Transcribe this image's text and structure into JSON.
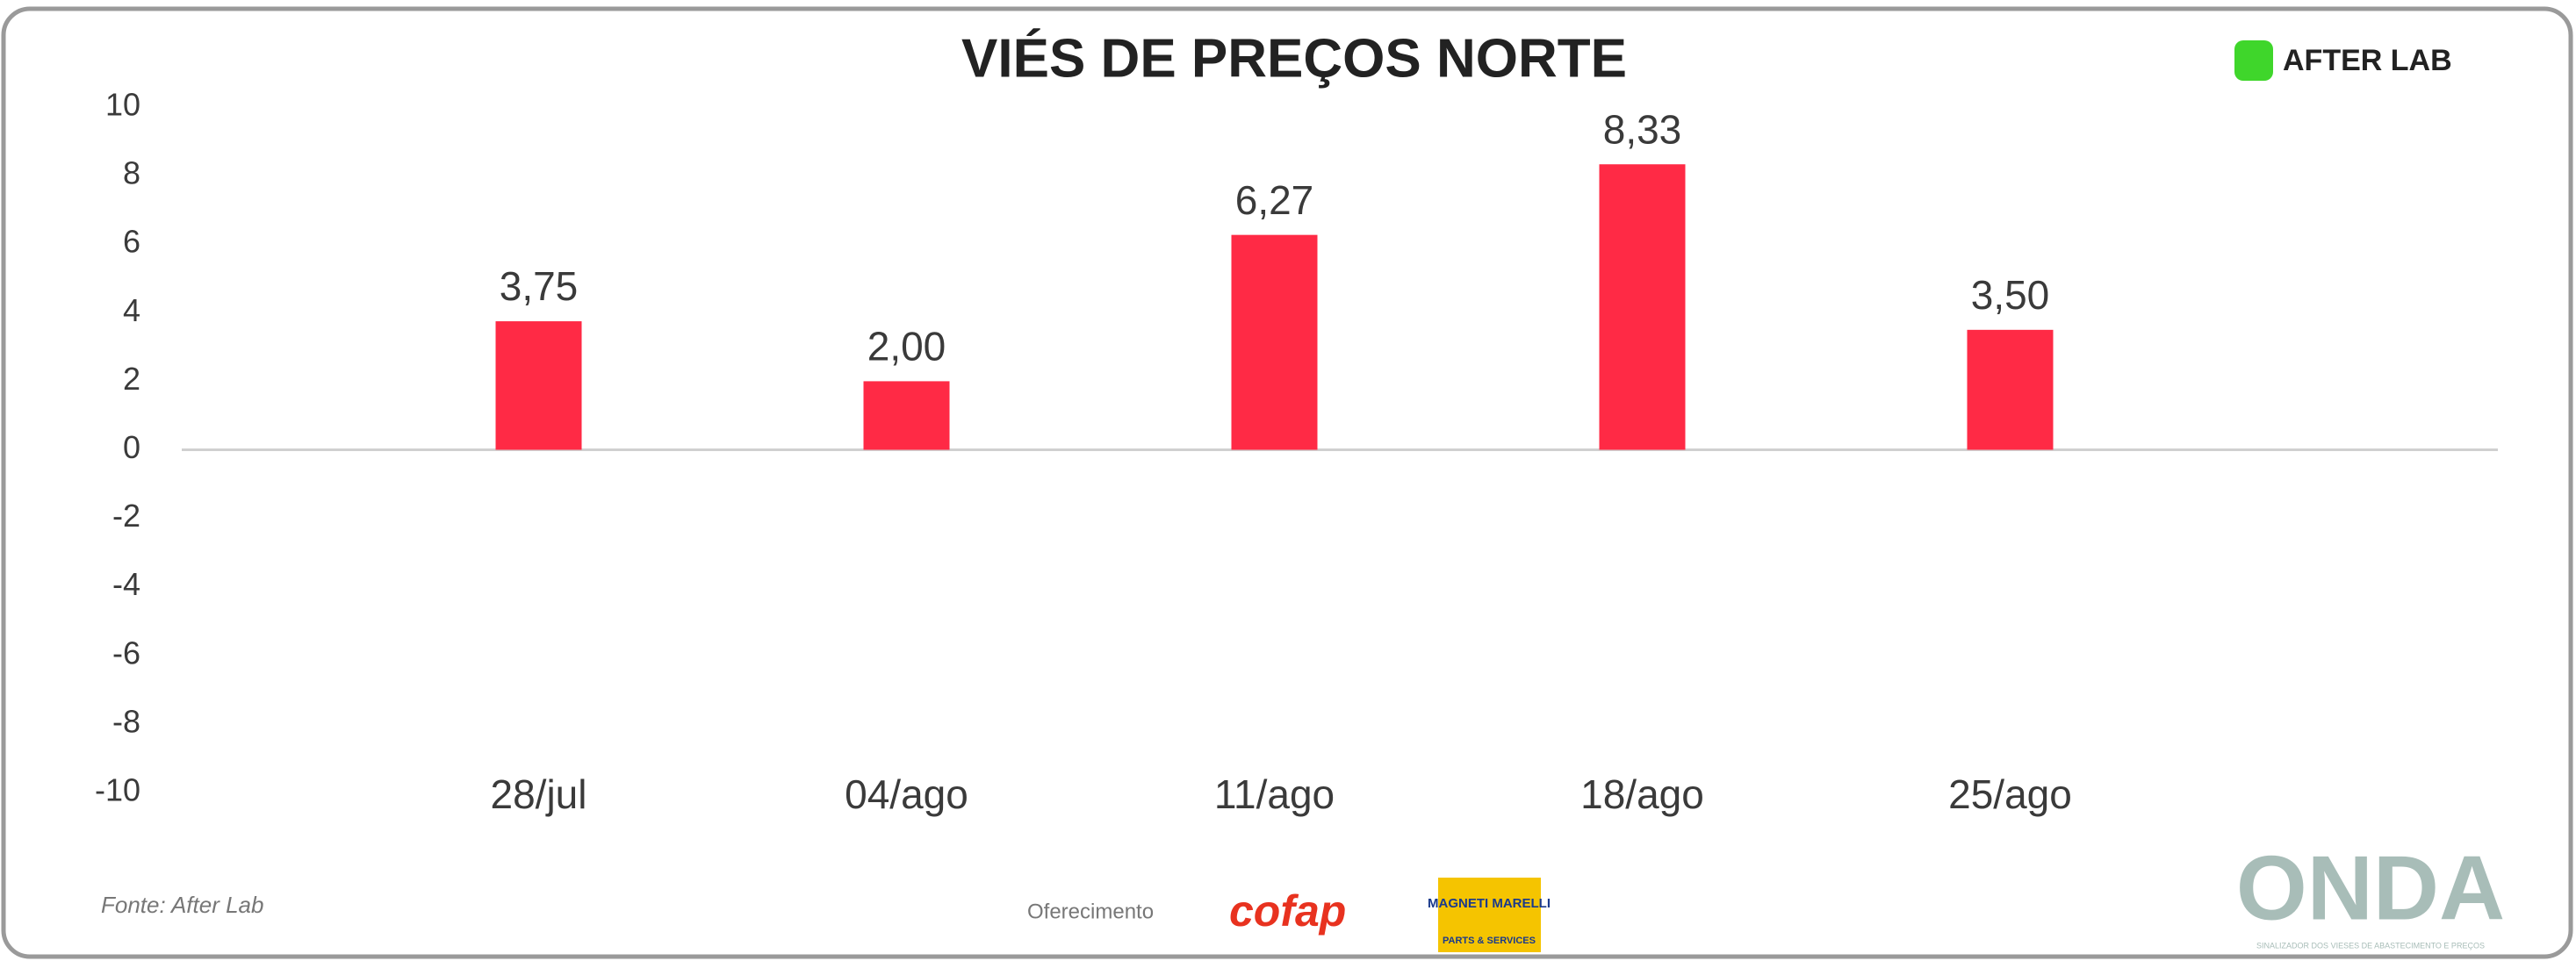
{
  "chart_data": {
    "type": "bar",
    "title": "VIÉS DE PREÇOS NORTE",
    "categories": [
      "28/jul",
      "04/ago",
      "11/ago",
      "18/ago",
      "25/ago"
    ],
    "values": [
      3.75,
      2.0,
      6.27,
      8.33,
      3.5
    ],
    "value_labels": [
      "3,75",
      "2,00",
      "6,27",
      "8,33",
      "3,50"
    ],
    "color": "#ff2a45",
    "ylim": [
      -10,
      10
    ],
    "yticks": [
      -10,
      -8,
      -6,
      -4,
      -2,
      0,
      2,
      4,
      6,
      8,
      10
    ],
    "grid": false,
    "source": "Fonte: After Lab",
    "sponsor_label": "Oferecimento",
    "logos": {
      "afterlab": "AFTER LAB",
      "cofap": "cofap",
      "magneti": "MAGNETI MARELLI",
      "magneti_sub": "PARTS & SERVICES",
      "onda": "ONDA",
      "onda_sub": "SINALIZADOR DOS VIESES DE ABASTECIMENTO E PREÇOS"
    }
  }
}
